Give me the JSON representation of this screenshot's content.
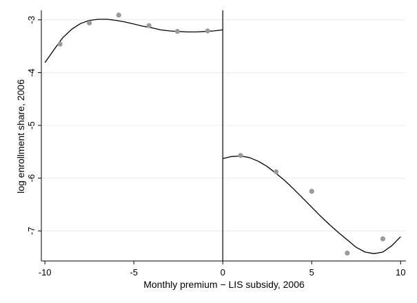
{
  "chart_data": {
    "type": "scatter",
    "title": "",
    "xlabel": "Monthly premium − LIS subsidy, 2006",
    "ylabel": "log enrollment share, 2006",
    "xlim": [
      -10.2,
      10.3
    ],
    "ylim": [
      -7.57,
      -2.82
    ],
    "xticks": [
      -10,
      -5,
      0,
      5,
      10
    ],
    "xtick_labels": [
      "-10",
      "-5",
      "0",
      "5",
      "10"
    ],
    "yticks": [
      -3,
      -4,
      -5,
      -6,
      -7
    ],
    "ytick_labels": [
      "-3",
      "-4",
      "-5",
      "-6",
      "-7"
    ],
    "grid": true,
    "cutoff_x": 0,
    "colors": {
      "points": "#9a9a9a",
      "fit": "#000000",
      "grid": "#ececec",
      "axis": "#000000"
    },
    "series": [
      {
        "kind": "binned-means",
        "x": [
          -9.15,
          -7.5,
          -5.85,
          -4.15,
          -2.55,
          -0.85,
          1.0,
          3.0,
          5.0,
          7.0,
          9.0
        ],
        "y": [
          -3.46,
          -3.06,
          -2.91,
          -3.11,
          -3.22,
          -3.21,
          -5.57,
          -5.88,
          -6.25,
          -7.42,
          -7.15
        ]
      },
      {
        "kind": "polynomial-fit-left",
        "x": [
          -10.0,
          -9.5,
          -9.0,
          -8.5,
          -8.0,
          -7.5,
          -7.0,
          -6.5,
          -6.0,
          -5.5,
          -5.0,
          -4.5,
          -4.0,
          -3.5,
          -3.0,
          -2.5,
          -2.0,
          -1.5,
          -1.0,
          -0.5,
          0.0
        ],
        "y": [
          -3.81,
          -3.57,
          -3.34,
          -3.18,
          -3.07,
          -3.01,
          -2.99,
          -2.99,
          -3.01,
          -3.04,
          -3.08,
          -3.12,
          -3.15,
          -3.19,
          -3.21,
          -3.22,
          -3.23,
          -3.23,
          -3.22,
          -3.21,
          -3.19
        ]
      },
      {
        "kind": "polynomial-fit-right",
        "x": [
          0.0,
          0.5,
          1.0,
          1.5,
          2.0,
          2.5,
          3.0,
          3.5,
          4.0,
          4.5,
          5.0,
          5.5,
          6.0,
          6.5,
          7.0,
          7.5,
          8.0,
          8.5,
          9.0,
          9.5,
          10.0
        ],
        "y": [
          -5.63,
          -5.59,
          -5.58,
          -5.61,
          -5.68,
          -5.78,
          -5.91,
          -6.05,
          -6.21,
          -6.38,
          -6.55,
          -6.72,
          -6.88,
          -7.03,
          -7.17,
          -7.31,
          -7.4,
          -7.43,
          -7.4,
          -7.28,
          -7.11
        ]
      }
    ]
  }
}
